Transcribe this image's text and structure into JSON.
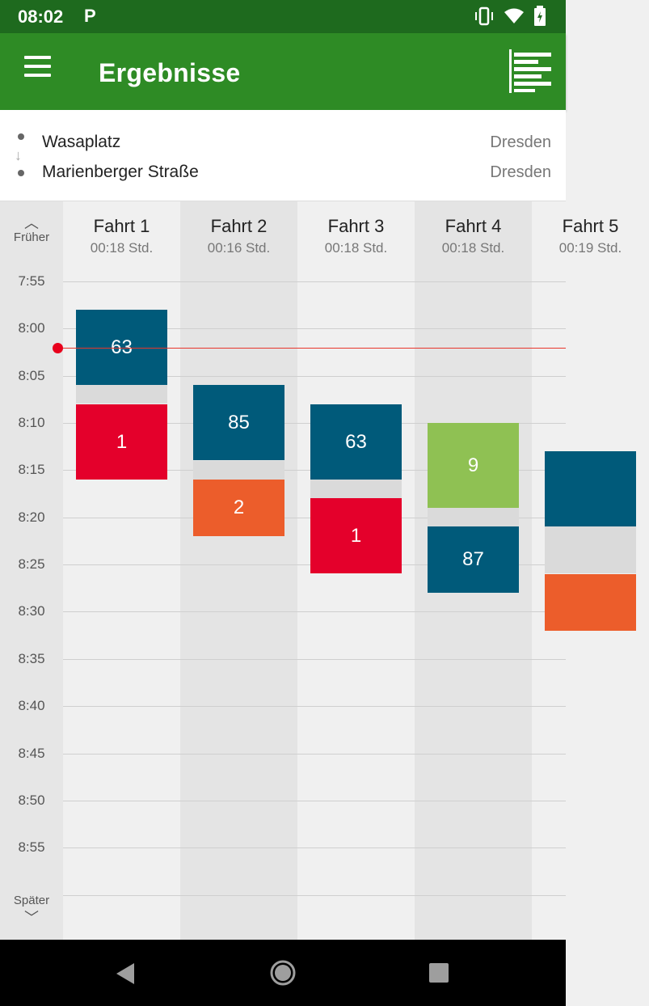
{
  "status_bar": {
    "time": "08:02",
    "notification_icon": "parking-p-icon",
    "icons": [
      "vibrate-icon",
      "wifi-icon",
      "battery-charging-icon"
    ]
  },
  "app_bar": {
    "title": "Ergebnisse",
    "menu_icon": "hamburger-menu-icon",
    "action_icon": "list-view-icon"
  },
  "route": {
    "from": {
      "stop": "Wasaplatz",
      "city": "Dresden"
    },
    "to": {
      "stop": "Marienberger Straße",
      "city": "Dresden"
    }
  },
  "timeline": {
    "earlier_label": "Früher",
    "later_label": "Später",
    "time_labels": [
      "7:55",
      "8:00",
      "8:05",
      "8:10",
      "8:15",
      "8:20",
      "8:25",
      "8:30",
      "8:35",
      "8:40",
      "8:45",
      "8:50",
      "8:55"
    ],
    "current_time": "8:02"
  },
  "colors": {
    "appbar": "#2e8b25",
    "statusbar": "#1e6a1e",
    "tram_blue": "#005a7a",
    "tram_red": "#e4002b",
    "tram_orange": "#ec5d2b",
    "tram_green": "#8fc153",
    "now_line": "#e8362c"
  },
  "trips": [
    {
      "name": "Fahrt 1",
      "duration": "00:18 Std.",
      "legs": [
        {
          "line": "63",
          "start": "7:58",
          "end": "8:06",
          "color": "#005a7a"
        },
        {
          "line": "1",
          "start": "8:08",
          "end": "8:16",
          "color": "#e4002b"
        }
      ]
    },
    {
      "name": "Fahrt 2",
      "duration": "00:16 Std.",
      "legs": [
        {
          "line": "85",
          "start": "8:06",
          "end": "8:14",
          "color": "#005a7a"
        },
        {
          "line": "2",
          "start": "8:16",
          "end": "8:22",
          "color": "#ec5d2b"
        }
      ]
    },
    {
      "name": "Fahrt 3",
      "duration": "00:18 Std.",
      "legs": [
        {
          "line": "63",
          "start": "8:08",
          "end": "8:16",
          "color": "#005a7a"
        },
        {
          "line": "1",
          "start": "8:18",
          "end": "8:26",
          "color": "#e4002b"
        }
      ]
    },
    {
      "name": "Fahrt 4",
      "duration": "00:18 Std.",
      "legs": [
        {
          "line": "9",
          "start": "8:10",
          "end": "8:19",
          "color": "#8fc153"
        },
        {
          "line": "87",
          "start": "8:21",
          "end": "8:28",
          "color": "#005a7a"
        }
      ]
    },
    {
      "name": "Fahrt 5",
      "duration": "00:19 Std.",
      "legs": [
        {
          "line": "",
          "start": "8:13",
          "end": "8:21",
          "color": "#005a7a"
        },
        {
          "line": "",
          "start": "8:26",
          "end": "8:32",
          "color": "#ec5d2b"
        }
      ]
    }
  ]
}
